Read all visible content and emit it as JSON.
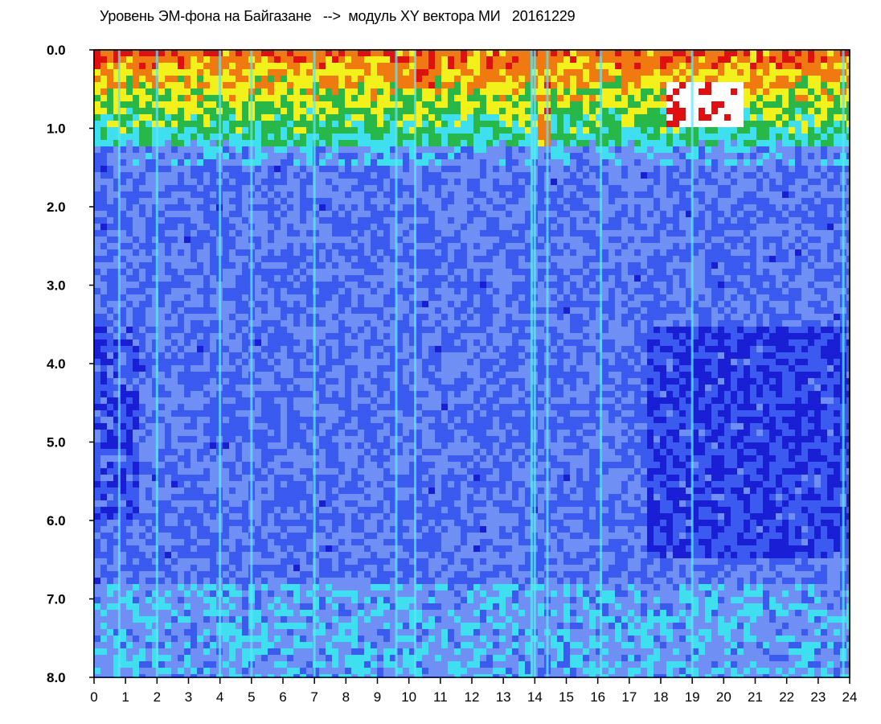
{
  "chart_data": {
    "type": "heatmap",
    "title": "Уровень ЭМ-фона на Байгазане   -->  модуль XY вектора МИ   20161229",
    "x_ticks": [
      "0",
      "1",
      "2",
      "3",
      "4",
      "5",
      "6",
      "7",
      "8",
      "9",
      "10",
      "11",
      "12",
      "13",
      "14",
      "15",
      "16",
      "17",
      "18",
      "19",
      "20",
      "21",
      "22",
      "23",
      "24"
    ],
    "y_ticks": [
      "0.0",
      "1.0",
      "2.0",
      "3.0",
      "4.0",
      "5.0",
      "6.0",
      "7.0",
      "8.0"
    ],
    "xlim": [
      0,
      24
    ],
    "ylim": [
      0,
      8
    ],
    "y_reversed": true,
    "grid": false,
    "colormap": [
      "#1a1fd6",
      "#3b5bf0",
      "#6f8ff5",
      "#3ee0f0",
      "#28b84a",
      "#f2f21a",
      "#f07a10",
      "#e01010",
      "#ffffff"
    ],
    "intense_regions": [
      {
        "x": [
          0,
          1
        ],
        "y": [
          0.4,
          0.8
        ],
        "level": 0.55
      },
      {
        "x": [
          1.5,
          3.5
        ],
        "y": [
          0.1,
          0.6
        ],
        "level": 0.5
      },
      {
        "x": [
          9.5,
          10.8
        ],
        "y": [
          0.0,
          0.5
        ],
        "level": 0.75
      },
      {
        "x": [
          14.0,
          14.6
        ],
        "y": [
          0.0,
          1.2
        ],
        "level": 0.7
      },
      {
        "x": [
          18.2,
          20.6
        ],
        "y": [
          0.4,
          1.0
        ],
        "level": 0.95
      },
      {
        "x": [
          15.5,
          16.5
        ],
        "y": [
          0.8,
          1.1
        ],
        "level": 0.5
      }
    ],
    "bright_columns": [
      0.8,
      2.0,
      4.0,
      5.0,
      7.0,
      9.6,
      10.2,
      13.9,
      14.0,
      14.4,
      16.1,
      19.0,
      23.8
    ]
  }
}
